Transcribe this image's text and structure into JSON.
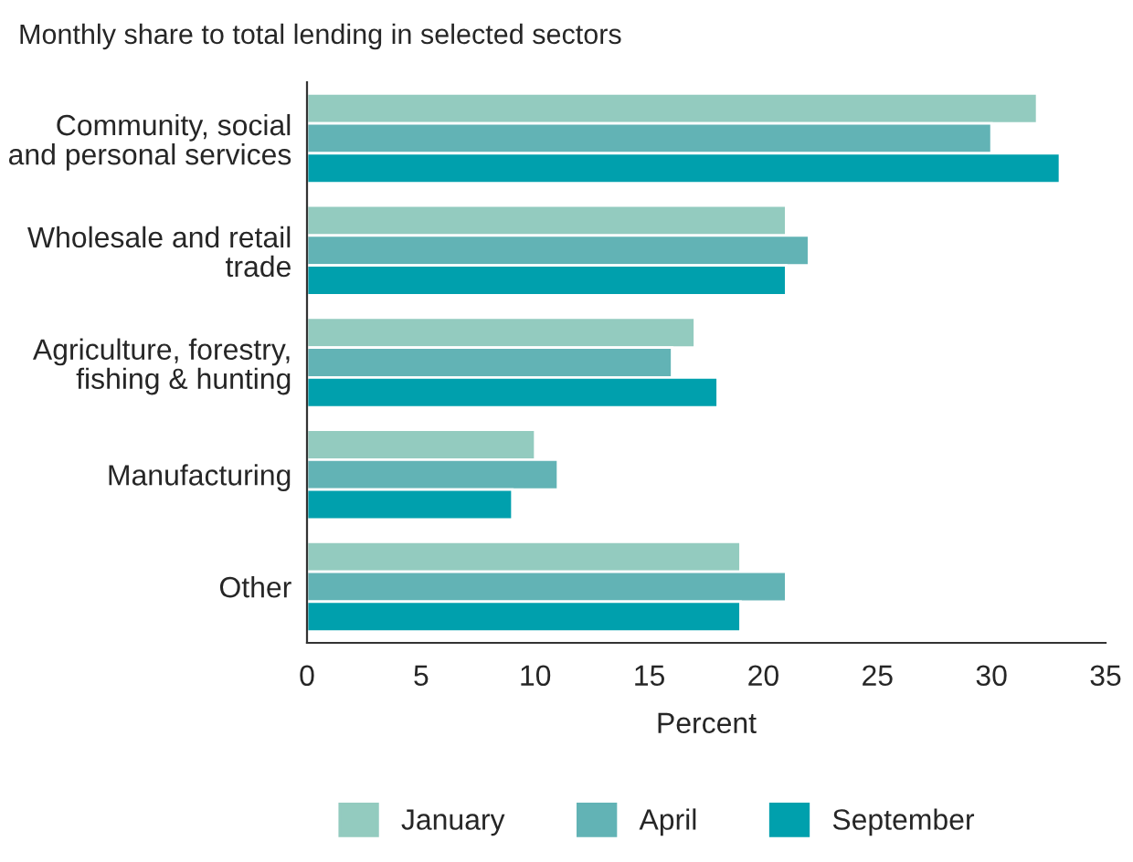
{
  "chart_data": {
    "type": "bar",
    "orientation": "horizontal",
    "title": "Monthly share to total lending in selected sectors",
    "xlabel": "Percent",
    "categories": [
      "Community, social\nand personal services",
      "Wholesale and retail\ntrade",
      "Agriculture, forestry,\nfishing & hunting",
      "Manufacturing",
      "Other"
    ],
    "series": [
      {
        "name": "January",
        "color": "#93cbbf",
        "values": [
          32,
          21,
          17,
          10,
          19
        ]
      },
      {
        "name": "April",
        "color": "#62b3b5",
        "values": [
          30,
          22,
          16,
          11,
          21
        ]
      },
      {
        "name": "September",
        "color": "#00a0ad",
        "values": [
          33,
          21,
          18,
          9,
          19
        ]
      }
    ],
    "xlim": [
      0,
      35
    ],
    "xticks": [
      0,
      5,
      10,
      15,
      20,
      25,
      30,
      35
    ],
    "grid": false,
    "legend": "bottom"
  }
}
